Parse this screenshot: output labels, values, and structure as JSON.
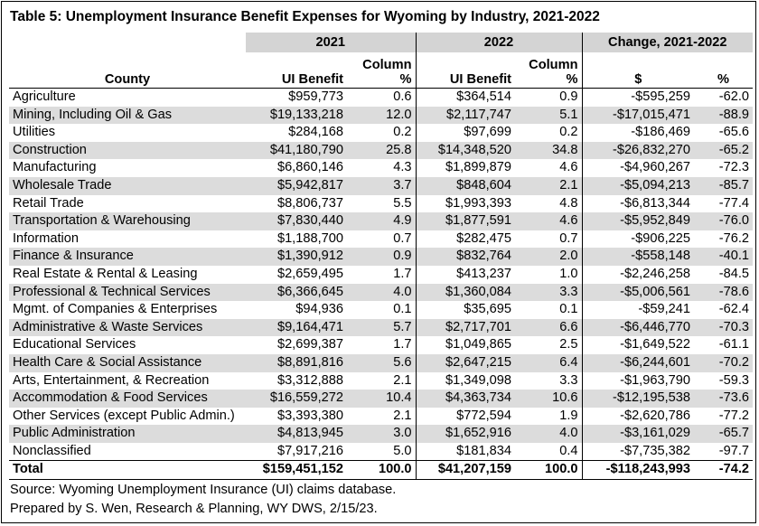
{
  "title": "Table 5: Unemployment Insurance Benefit Expenses for Wyoming by Industry, 2021-2022",
  "groups": {
    "g2021": "2021",
    "g2022": "2022",
    "change": "Change, 2021-2022"
  },
  "headers": {
    "county": "County",
    "ui_2021": "UI Benefit",
    "col_2021_l1": "Column",
    "col_2021_l2": "%",
    "ui_2022": "UI Benefit",
    "col_2022_l1": "Column",
    "col_2022_l2": "%",
    "dollar": "$",
    "pct": "%"
  },
  "rows": [
    {
      "name": "Agriculture",
      "ui2021": "$959,773",
      "pct2021": "0.6",
      "ui2022": "$364,514",
      "pct2022": "0.9",
      "chg": "-$595,259",
      "chgpct": "-62.0"
    },
    {
      "name": "Mining, Including Oil & Gas",
      "ui2021": "$19,133,218",
      "pct2021": "12.0",
      "ui2022": "$2,117,747",
      "pct2022": "5.1",
      "chg": "-$17,015,471",
      "chgpct": "-88.9"
    },
    {
      "name": "Utilities",
      "ui2021": "$284,168",
      "pct2021": "0.2",
      "ui2022": "$97,699",
      "pct2022": "0.2",
      "chg": "-$186,469",
      "chgpct": "-65.6"
    },
    {
      "name": "Construction",
      "ui2021": "$41,180,790",
      "pct2021": "25.8",
      "ui2022": "$14,348,520",
      "pct2022": "34.8",
      "chg": "-$26,832,270",
      "chgpct": "-65.2"
    },
    {
      "name": "Manufacturing",
      "ui2021": "$6,860,146",
      "pct2021": "4.3",
      "ui2022": "$1,899,879",
      "pct2022": "4.6",
      "chg": "-$4,960,267",
      "chgpct": "-72.3"
    },
    {
      "name": "Wholesale Trade",
      "ui2021": "$5,942,817",
      "pct2021": "3.7",
      "ui2022": "$848,604",
      "pct2022": "2.1",
      "chg": "-$5,094,213",
      "chgpct": "-85.7"
    },
    {
      "name": "Retail Trade",
      "ui2021": "$8,806,737",
      "pct2021": "5.5",
      "ui2022": "$1,993,393",
      "pct2022": "4.8",
      "chg": "-$6,813,344",
      "chgpct": "-77.4"
    },
    {
      "name": "Transportation & Warehousing",
      "ui2021": "$7,830,440",
      "pct2021": "4.9",
      "ui2022": "$1,877,591",
      "pct2022": "4.6",
      "chg": "-$5,952,849",
      "chgpct": "-76.0"
    },
    {
      "name": "Information",
      "ui2021": "$1,188,700",
      "pct2021": "0.7",
      "ui2022": "$282,475",
      "pct2022": "0.7",
      "chg": "-$906,225",
      "chgpct": "-76.2"
    },
    {
      "name": "Finance & Insurance",
      "ui2021": "$1,390,912",
      "pct2021": "0.9",
      "ui2022": "$832,764",
      "pct2022": "2.0",
      "chg": "-$558,148",
      "chgpct": "-40.1"
    },
    {
      "name": "Real Estate & Rental & Leasing",
      "ui2021": "$2,659,495",
      "pct2021": "1.7",
      "ui2022": "$413,237",
      "pct2022": "1.0",
      "chg": "-$2,246,258",
      "chgpct": "-84.5"
    },
    {
      "name": "Professional & Technical Services",
      "ui2021": "$6,366,645",
      "pct2021": "4.0",
      "ui2022": "$1,360,084",
      "pct2022": "3.3",
      "chg": "-$5,006,561",
      "chgpct": "-78.6"
    },
    {
      "name": "Mgmt. of Companies & Enterprises",
      "ui2021": "$94,936",
      "pct2021": "0.1",
      "ui2022": "$35,695",
      "pct2022": "0.1",
      "chg": "-$59,241",
      "chgpct": "-62.4"
    },
    {
      "name": "Administrative & Waste Services",
      "ui2021": "$9,164,471",
      "pct2021": "5.7",
      "ui2022": "$2,717,701",
      "pct2022": "6.6",
      "chg": "-$6,446,770",
      "chgpct": "-70.3"
    },
    {
      "name": "Educational Services",
      "ui2021": "$2,699,387",
      "pct2021": "1.7",
      "ui2022": "$1,049,865",
      "pct2022": "2.5",
      "chg": "-$1,649,522",
      "chgpct": "-61.1"
    },
    {
      "name": "Health Care & Social Assistance",
      "ui2021": "$8,891,816",
      "pct2021": "5.6",
      "ui2022": "$2,647,215",
      "pct2022": "6.4",
      "chg": "-$6,244,601",
      "chgpct": "-70.2"
    },
    {
      "name": "Arts, Entertainment, & Recreation",
      "ui2021": "$3,312,888",
      "pct2021": "2.1",
      "ui2022": "$1,349,098",
      "pct2022": "3.3",
      "chg": "-$1,963,790",
      "chgpct": "-59.3"
    },
    {
      "name": "Accommodation & Food Services",
      "ui2021": "$16,559,272",
      "pct2021": "10.4",
      "ui2022": "$4,363,734",
      "pct2022": "10.6",
      "chg": "-$12,195,538",
      "chgpct": "-73.6"
    },
    {
      "name": "Other Services (except Public Admin.)",
      "ui2021": "$3,393,380",
      "pct2021": "2.1",
      "ui2022": "$772,594",
      "pct2022": "1.9",
      "chg": "-$2,620,786",
      "chgpct": "-77.2"
    },
    {
      "name": "Public Administration",
      "ui2021": "$4,813,945",
      "pct2021": "3.0",
      "ui2022": "$1,652,916",
      "pct2022": "4.0",
      "chg": "-$3,161,029",
      "chgpct": "-65.7"
    },
    {
      "name": "Nonclassified",
      "ui2021": "$7,917,216",
      "pct2021": "5.0",
      "ui2022": "$181,834",
      "pct2022": "0.4",
      "chg": "-$7,735,382",
      "chgpct": "-97.7"
    }
  ],
  "total": {
    "name": "Total",
    "ui2021": "$159,451,152",
    "pct2021": "100.0",
    "ui2022": "$41,207,159",
    "pct2022": "100.0",
    "chg": "-$118,243,993",
    "chgpct": "-74.2"
  },
  "footer": {
    "source": "Source: Wyoming Unemployment Insurance (UI) claims database.",
    "prepared": "Prepared by S. Wen, Research & Planning, WY DWS, 2/15/23."
  }
}
